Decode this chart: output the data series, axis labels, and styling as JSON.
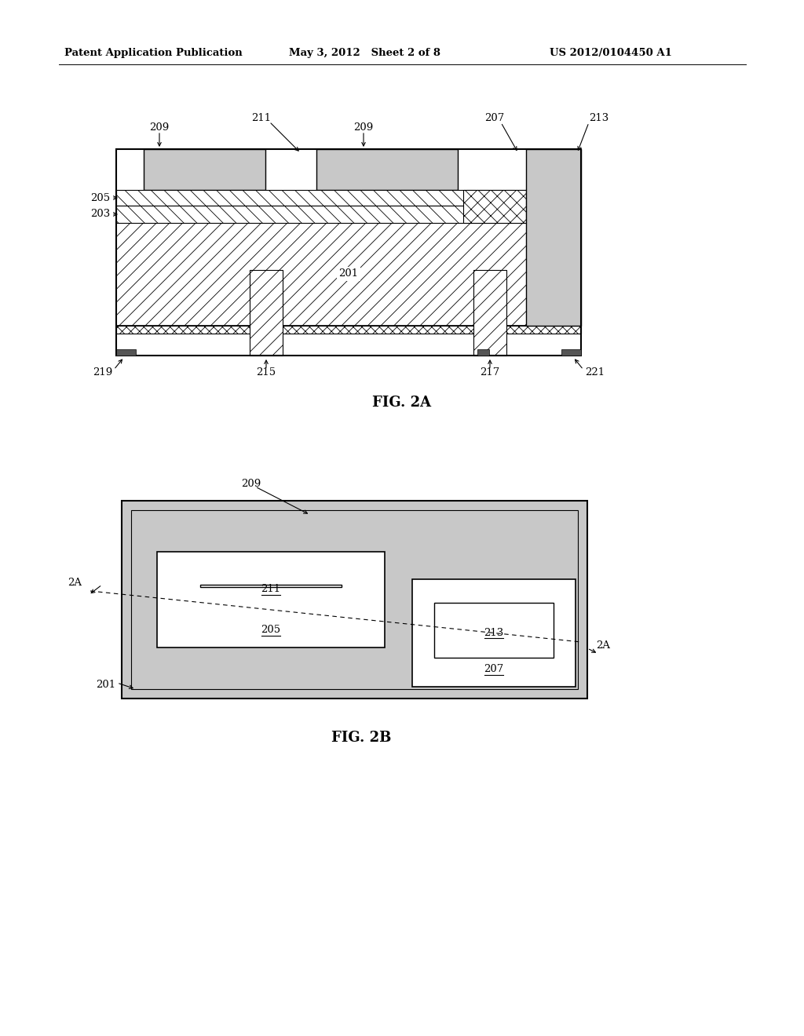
{
  "bg_color": "#ffffff",
  "header_left": "Patent Application Publication",
  "header_mid": "May 3, 2012   Sheet 2 of 8",
  "header_right": "US 2012/0104450 A1",
  "fig2a_caption": "FIG. 2A",
  "fig2b_caption": "FIG. 2B",
  "stipple_gray": "#c8c8c8",
  "hatch_gray": "#d0d0d0",
  "white": "#ffffff",
  "black": "#000000"
}
